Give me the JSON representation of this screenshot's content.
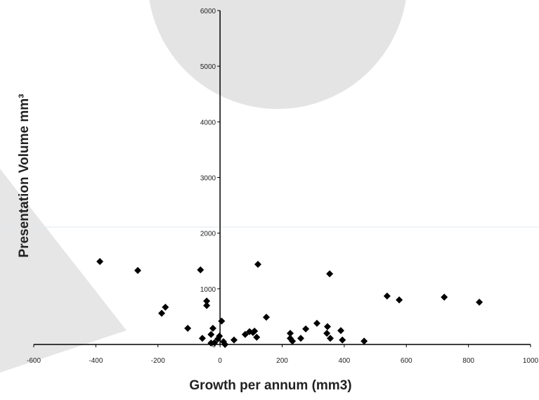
{
  "chart_data": {
    "type": "scatter",
    "x_label": "Growth per annum (mm3)",
    "y_label": "Presentation Volume mm³",
    "color": "#000000",
    "xlim": [
      -600,
      1000
    ],
    "xticks": [
      -600,
      -400,
      -200,
      0,
      200,
      400,
      600,
      800,
      1000
    ],
    "ylim": [
      0,
      6000
    ],
    "yticks": [
      0,
      1000,
      2000,
      3000,
      4000,
      5000,
      6000
    ],
    "grid": false,
    "x": [
      -387,
      -265,
      -63,
      122,
      353,
      538,
      577,
      722,
      835,
      -176,
      -188,
      -43,
      -43,
      -104,
      -57,
      149,
      -23,
      5,
      -29,
      -7,
      -18,
      11,
      -2,
      45,
      81,
      95,
      111,
      118,
      106,
      226,
      226,
      233,
      260,
      276,
      312,
      346,
      344,
      355,
      389,
      394,
      464,
      -29,
      16
    ],
    "y": [
      1490,
      1330,
      1340,
      1440,
      1270,
      870,
      800,
      850,
      760,
      670,
      560,
      780,
      700,
      290,
      110,
      490,
      290,
      420,
      180,
      100,
      30,
      50,
      150,
      80,
      180,
      230,
      240,
      130,
      215,
      200,
      110,
      60,
      110,
      280,
      380,
      320,
      200,
      110,
      250,
      80,
      60,
      25,
      0
    ]
  }
}
